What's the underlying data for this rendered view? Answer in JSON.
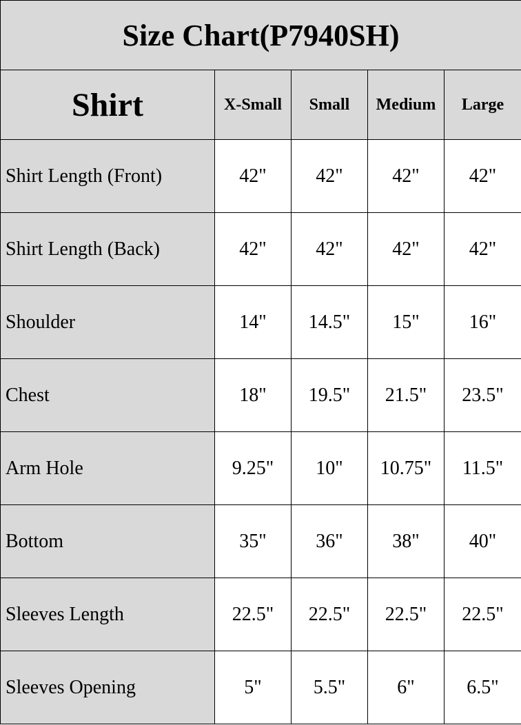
{
  "title": "Size Chart(P7940SH)",
  "header": {
    "section": "Shirt",
    "sizes": [
      "X-Small",
      "Small",
      "Medium",
      "Large"
    ]
  },
  "colors": {
    "label_bg": "#d9d9d9",
    "cell_bg": "#ffffff",
    "border": "#000000"
  },
  "rows": [
    {
      "label": "Shirt Length (Front)",
      "values": [
        "42\"",
        "42\"",
        "42\"",
        "42\""
      ]
    },
    {
      "label": "Shirt Length (Back)",
      "values": [
        "42\"",
        "42\"",
        "42\"",
        "42\""
      ]
    },
    {
      "label": "Shoulder",
      "values": [
        "14\"",
        "14.5\"",
        "15\"",
        "16\""
      ]
    },
    {
      "label": "Chest",
      "values": [
        "18\"",
        "19.5\"",
        "21.5\"",
        "23.5\""
      ]
    },
    {
      "label": "Arm Hole",
      "values": [
        "9.25\"",
        "10\"",
        "10.75\"",
        "11.5\""
      ]
    },
    {
      "label": "Bottom",
      "values": [
        "35\"",
        "36\"",
        "38\"",
        "40\""
      ]
    },
    {
      "label": "Sleeves Length",
      "values": [
        "22.5\"",
        "22.5\"",
        "22.5\"",
        "22.5\""
      ]
    },
    {
      "label": "Sleeves Opening",
      "values": [
        "5\"",
        "5.5\"",
        "6\"",
        "6.5\""
      ]
    }
  ]
}
